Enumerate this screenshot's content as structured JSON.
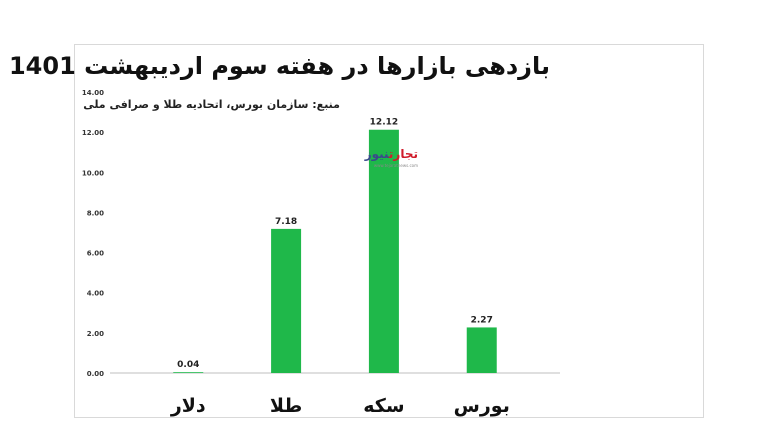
{
  "chart_data": {
    "type": "bar",
    "title": "بازدهی بازارها در هفته سوم اردیبهشت 1401",
    "subtitle": "منبع: سازمان بورس، اتحادیه طلا و صرافی ملی",
    "categories": [
      "دلار",
      "طلا",
      "سکه",
      "بورس"
    ],
    "values": [
      0.04,
      7.18,
      12.12,
      2.27
    ],
    "value_labels": [
      "0.04",
      "7.18",
      "12.12",
      "2.27"
    ],
    "yticks": [
      "0.00",
      "2.00",
      "4.00",
      "6.00",
      "8.00",
      "10.00",
      "12.00",
      "14.00"
    ],
    "ylim": [
      0,
      14
    ],
    "bar_color": "#1fb84a",
    "grid": false,
    "legend": "none"
  },
  "watermark": {
    "text_a": "تجارت",
    "text_b": "نیوز",
    "url": "www.tejaratnews.com"
  }
}
